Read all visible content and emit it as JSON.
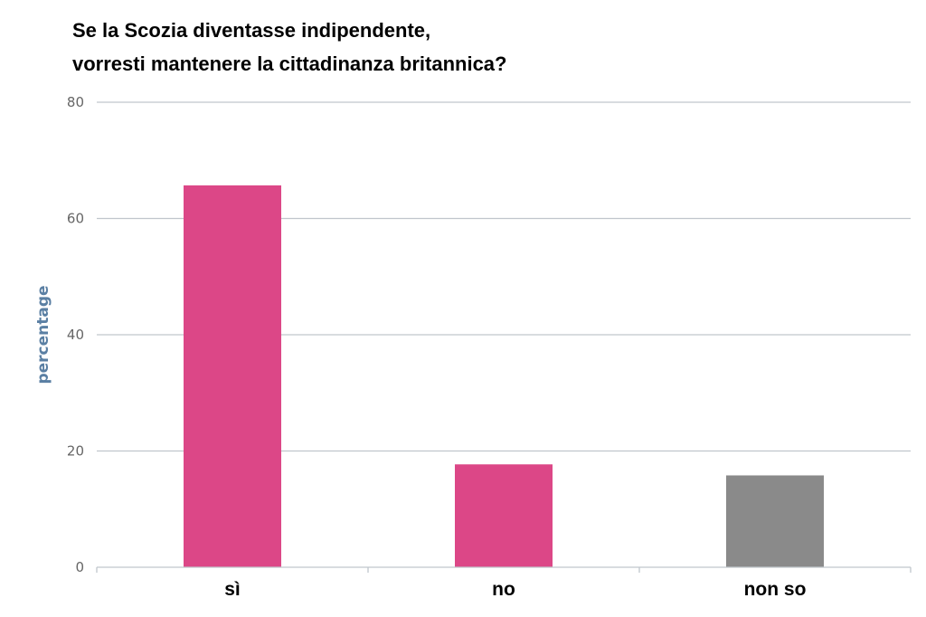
{
  "chart_data": {
    "type": "bar",
    "title_lines": [
      "Se la Scozia diventasse indipendente,",
      "vorresti mantenere la cittadinanza britannica?"
    ],
    "ylabel": "percentage",
    "xlabel": "",
    "ylim": [
      0,
      80
    ],
    "yticks": [
      "0",
      "20",
      "40",
      "60",
      "80"
    ],
    "grid": true,
    "categories": [
      "sì",
      "no",
      "non so"
    ],
    "values": [
      65.7,
      17.7,
      15.8
    ],
    "colors": [
      "#dc4787",
      "#dc4787",
      "#8a8a8a"
    ]
  }
}
